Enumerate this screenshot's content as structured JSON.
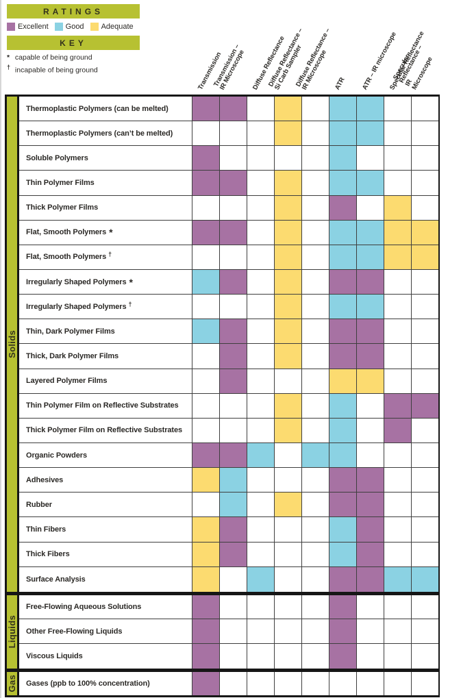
{
  "legend": {
    "ratings_title": "RATINGS",
    "items": [
      {
        "label": "Excellent",
        "code": "E"
      },
      {
        "label": "Good",
        "code": "G"
      },
      {
        "label": "Adequate",
        "code": "A"
      }
    ],
    "key_title": "KEY",
    "key_items": [
      {
        "symbol": "*",
        "text": "capable of being ground"
      },
      {
        "symbol": "†",
        "text": "incapable of being ground"
      }
    ]
  },
  "colors": {
    "excellent": "#a772a3",
    "good": "#8bd2e3",
    "adequate": "#fcdb70",
    "band": "#b7c132",
    "grid_line": "#3e3e3e",
    "section_border": "#161616"
  },
  "column_header_lines": [
    [
      "Transmission"
    ],
    [
      "Transmission –",
      "IR Microscope"
    ],
    [
      "Diffuse Reflectance"
    ],
    [
      "Diffuse Reflectance –",
      "Si Carb Sampler"
    ],
    [
      "Diffuse Reflectance –",
      "IR Microscope"
    ],
    [
      "ATR"
    ],
    [
      "ATR – IR microscope"
    ],
    [
      "Specular Reflectance"
    ],
    [
      "Specular Reflectance –",
      "IR Microscope"
    ]
  ],
  "chart_data": {
    "type": "heatmap",
    "title": "",
    "rating_scale": {
      "E": "Excellent",
      "G": "Good",
      "A": "Adequate",
      "": "blank"
    },
    "columns": [
      "Transmission",
      "Transmission – IR Microscope",
      "Diffuse Reflectance",
      "Diffuse Reflectance – Si Carb Sampler",
      "Diffuse Reflectance – IR Microscope",
      "ATR",
      "ATR – IR microscope",
      "Specular Reflectance",
      "Specular Reflectance – IR Microscope"
    ],
    "sections": [
      {
        "name": "Solids",
        "rows": [
          {
            "label": "Thermoplastic Polymers (can be melted)",
            "suffix": "",
            "ratings": [
              "E",
              "E",
              "",
              "A",
              "",
              "G",
              "G",
              "",
              ""
            ]
          },
          {
            "label": "Thermoplastic Polymers (can’t be melted)",
            "suffix": "",
            "ratings": [
              "",
              "",
              "",
              "A",
              "",
              "G",
              "G",
              "",
              ""
            ]
          },
          {
            "label": "Soluble Polymers",
            "suffix": "",
            "ratings": [
              "E",
              "",
              "",
              "",
              "",
              "G",
              "",
              "",
              ""
            ]
          },
          {
            "label": "Thin Polymer Films",
            "suffix": "",
            "ratings": [
              "E",
              "E",
              "",
              "A",
              "",
              "G",
              "G",
              "",
              ""
            ]
          },
          {
            "label": "Thick Polymer Films",
            "suffix": "",
            "ratings": [
              "",
              "",
              "",
              "A",
              "",
              "E",
              "",
              "A",
              ""
            ]
          },
          {
            "label": "Flat, Smooth Polymers",
            "suffix": "*",
            "ratings": [
              "E",
              "E",
              "",
              "A",
              "",
              "G",
              "G",
              "A",
              "A"
            ]
          },
          {
            "label": "Flat, Smooth Polymers",
            "suffix": "†",
            "ratings": [
              "",
              "",
              "",
              "A",
              "",
              "G",
              "G",
              "A",
              "A"
            ]
          },
          {
            "label": "Irregularly Shaped Polymers",
            "suffix": "*",
            "ratings": [
              "G",
              "E",
              "",
              "A",
              "",
              "E",
              "E",
              "",
              ""
            ]
          },
          {
            "label": "Irregularly Shaped Polymers",
            "suffix": "†",
            "ratings": [
              "",
              "",
              "",
              "A",
              "",
              "G",
              "G",
              "",
              ""
            ]
          },
          {
            "label": "Thin, Dark Polymer Films",
            "suffix": "",
            "ratings": [
              "G",
              "E",
              "",
              "A",
              "",
              "E",
              "E",
              "",
              ""
            ]
          },
          {
            "label": "Thick, Dark Polymer Films",
            "suffix": "",
            "ratings": [
              "",
              "E",
              "",
              "A",
              "",
              "E",
              "E",
              "",
              ""
            ]
          },
          {
            "label": "Layered Polymer Films",
            "suffix": "",
            "ratings": [
              "",
              "E",
              "",
              "",
              "",
              "A",
              "A",
              "",
              ""
            ]
          },
          {
            "label": "Thin Polymer Film on Reflective Substrates",
            "suffix": "",
            "ratings": [
              "",
              "",
              "",
              "A",
              "",
              "G",
              "",
              "E",
              "E"
            ]
          },
          {
            "label": "Thick Polymer Film on Reflective Substrates",
            "suffix": "",
            "ratings": [
              "",
              "",
              "",
              "A",
              "",
              "G",
              "",
              "E",
              ""
            ]
          },
          {
            "label": "Organic Powders",
            "suffix": "",
            "ratings": [
              "E",
              "E",
              "G",
              "",
              "G",
              "G",
              "",
              "",
              ""
            ]
          },
          {
            "label": "Adhesives",
            "suffix": "",
            "ratings": [
              "A",
              "G",
              "",
              "",
              "",
              "E",
              "E",
              "",
              ""
            ]
          },
          {
            "label": "Rubber",
            "suffix": "",
            "ratings": [
              "",
              "G",
              "",
              "A",
              "",
              "E",
              "E",
              "",
              ""
            ]
          },
          {
            "label": "Thin Fibers",
            "suffix": "",
            "ratings": [
              "A",
              "E",
              "",
              "",
              "",
              "G",
              "E",
              "",
              ""
            ]
          },
          {
            "label": "Thick Fibers",
            "suffix": "",
            "ratings": [
              "A",
              "E",
              "",
              "",
              "",
              "G",
              "E",
              "",
              ""
            ]
          },
          {
            "label": "Surface Analysis",
            "suffix": "",
            "ratings": [
              "A",
              "",
              "G",
              "",
              "",
              "E",
              "E",
              "G",
              "G"
            ]
          }
        ]
      },
      {
        "name": "Liquids",
        "rows": [
          {
            "label": "Free-Flowing Aqueous Solutions",
            "suffix": "",
            "ratings": [
              "E",
              "",
              "",
              "",
              "",
              "E",
              "",
              "",
              ""
            ]
          },
          {
            "label": "Other Free-Flowing Liquids",
            "suffix": "",
            "ratings": [
              "E",
              "",
              "",
              "",
              "",
              "E",
              "",
              "",
              ""
            ]
          },
          {
            "label": "Viscous Liquids",
            "suffix": "",
            "ratings": [
              "E",
              "",
              "",
              "",
              "",
              "E",
              "",
              "",
              ""
            ]
          }
        ]
      },
      {
        "name": "Gas",
        "rows": [
          {
            "label": "Gases (ppb to 100% concentration)",
            "suffix": "",
            "ratings": [
              "E",
              "",
              "",
              "",
              "",
              "",
              "",
              "",
              ""
            ]
          }
        ]
      }
    ]
  }
}
